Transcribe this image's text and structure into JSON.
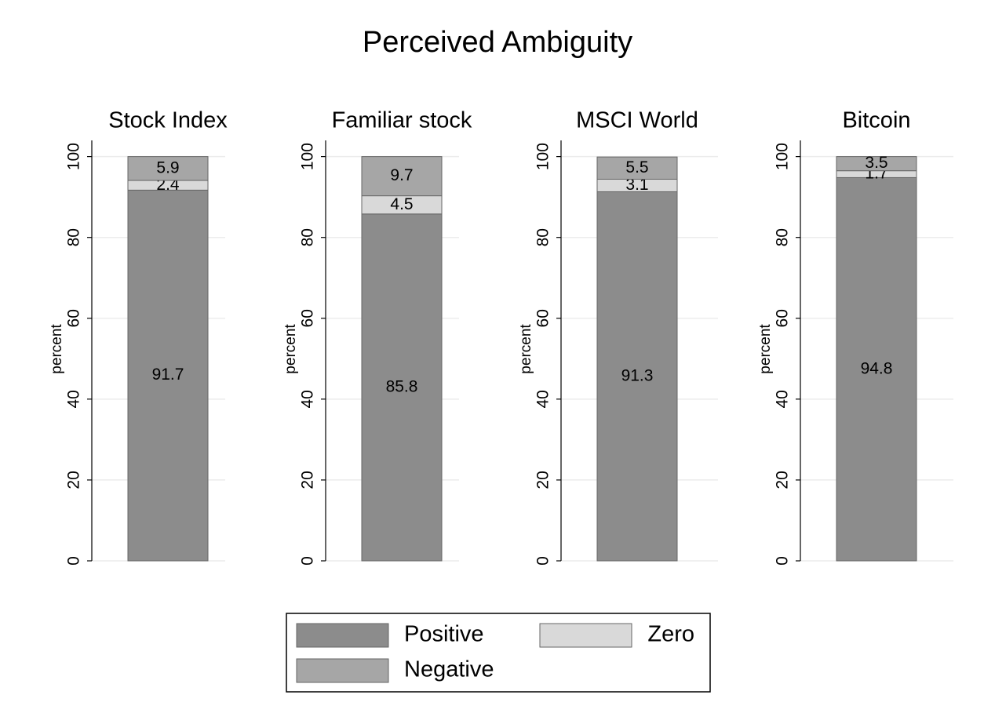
{
  "chart_data": {
    "type": "bar",
    "stacked": true,
    "title": "Perceived Ambiguity",
    "categories": [
      "Stock Index",
      "Familiar stock",
      "MSCI World",
      "Bitcoin"
    ],
    "ylabel": "percent",
    "series": [
      {
        "name": "Positive",
        "color": "#8c8c8c",
        "values": [
          91.7,
          85.8,
          91.3,
          94.8
        ]
      },
      {
        "name": "Zero",
        "color": "#d9d9d9",
        "values": [
          2.4,
          4.5,
          3.1,
          1.7
        ]
      },
      {
        "name": "Negative",
        "color": "#a6a6a6",
        "values": [
          5.9,
          9.7,
          5.5,
          3.5
        ]
      }
    ],
    "ylim": [
      0,
      104
    ],
    "yticks": [
      0,
      20,
      40,
      60,
      80,
      100
    ],
    "grid": true
  }
}
